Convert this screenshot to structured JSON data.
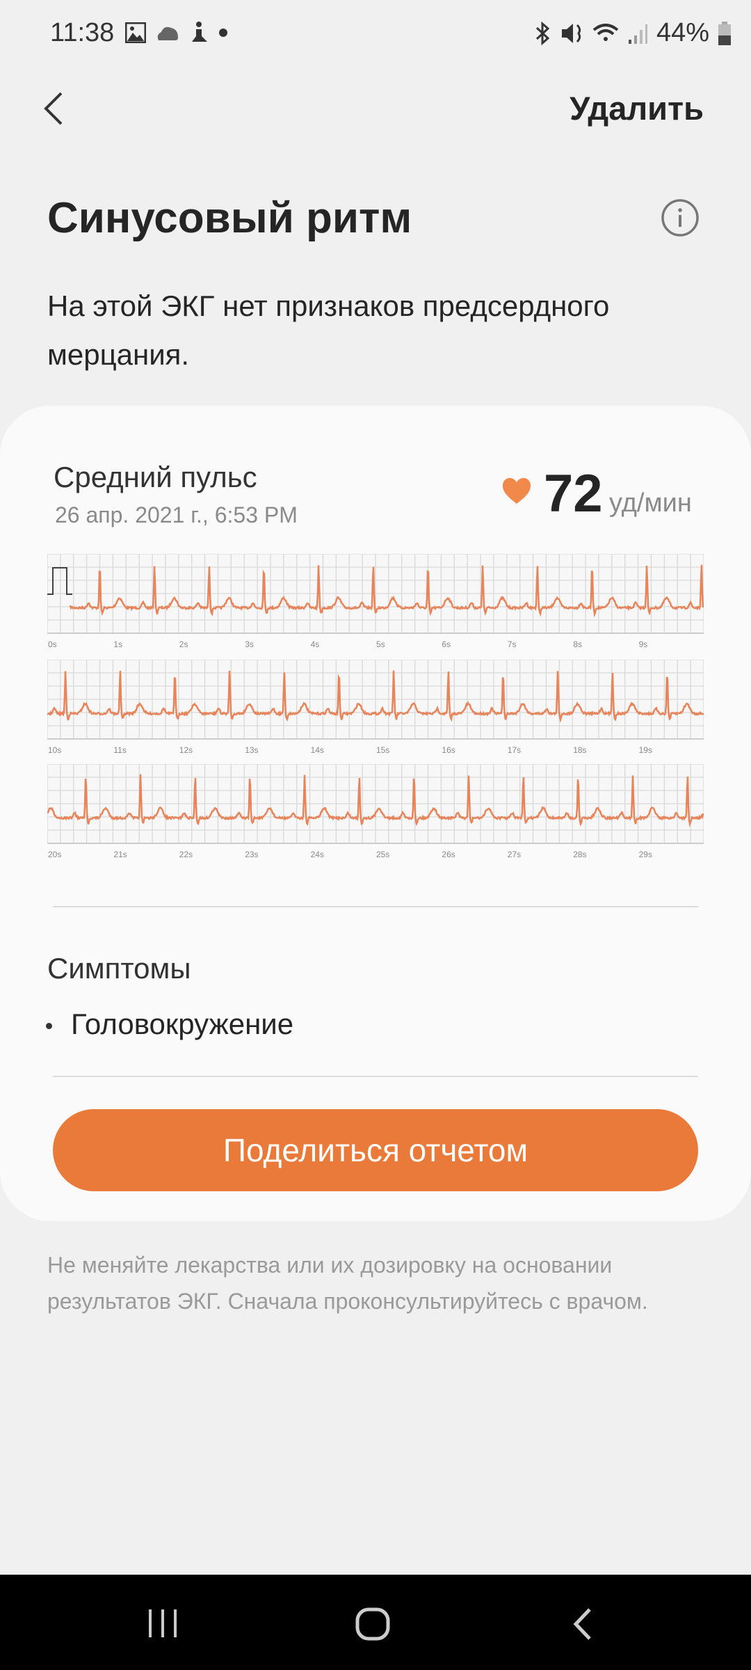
{
  "status_bar": {
    "time": "11:38",
    "battery": "44%",
    "icons": [
      "gallery-icon",
      "cloud-icon",
      "yoga-icon",
      "dot-icon",
      "bluetooth-icon",
      "mute-icon",
      "wifi-icon",
      "signal-icon",
      "battery-icon"
    ]
  },
  "header": {
    "back_icon": "chevron-left-icon",
    "delete_label": "Удалить"
  },
  "result": {
    "title": "Синусовый ритм",
    "info_icon": "info-icon",
    "description": "На этой ЭКГ нет признаков предсердного мерцания."
  },
  "card": {
    "avg_pulse_label": "Средний пульс",
    "date": "26 апр. 2021 г., 6:53 PM",
    "heart_rate": "72",
    "heart_rate_unit": "уд/мин",
    "ecg_color": "#e8845a",
    "strips": [
      {
        "labels": [
          "0s",
          "1s",
          "2s",
          "3s",
          "4s",
          "5s",
          "6s",
          "7s",
          "8s",
          "9s"
        ]
      },
      {
        "labels": [
          "10s",
          "11s",
          "12s",
          "13s",
          "14s",
          "15s",
          "16s",
          "17s",
          "18s",
          "19s"
        ]
      },
      {
        "labels": [
          "20s",
          "21s",
          "22s",
          "23s",
          "24s",
          "25s",
          "26s",
          "27s",
          "28s",
          "29s"
        ]
      }
    ],
    "symptoms_title": "Симптомы",
    "symptoms": [
      "Головокружение"
    ],
    "share_label": "Поделиться отчетом",
    "accent": "#ea7a3a"
  },
  "disclaimer": "Не меняйте лекарства или их дозировку на основании результатов ЭКГ. Сначала проконсультируйтесь с врачом.",
  "nav_bar": {
    "recents": "recents-icon",
    "home": "home-icon",
    "back": "back-icon"
  }
}
